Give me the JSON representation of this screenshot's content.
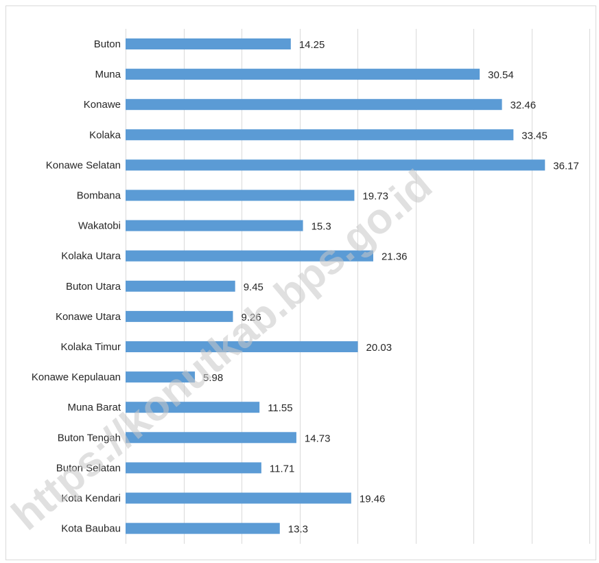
{
  "chart_data": {
    "type": "bar",
    "orientation": "horizontal",
    "title": "",
    "xlabel": "",
    "ylabel": "",
    "categories": [
      "Buton",
      "Muna",
      "Konawe",
      "Kolaka",
      "Konawe Selatan",
      "Bombana",
      "Wakatobi",
      "Kolaka Utara",
      "Buton Utara",
      "Konawe Utara",
      "Kolaka Timur",
      "Konawe Kepulauan",
      "Muna Barat",
      "Buton Tengah",
      "Buton Selatan",
      "Kota Kendari",
      "Kota Baubau"
    ],
    "values": [
      14.25,
      30.54,
      32.46,
      33.45,
      36.17,
      19.73,
      15.3,
      21.36,
      9.45,
      9.26,
      20.03,
      5.98,
      11.55,
      14.73,
      11.71,
      19.46,
      13.3
    ],
    "value_labels": [
      "14.25",
      "30.54",
      "32.46",
      "33.45",
      "36.17",
      "19.73",
      "15.3",
      "21.36",
      "9.45",
      "9.26",
      "20.03",
      "5.98",
      "11.55",
      "14.73",
      "11.71",
      "19.46",
      "13.3"
    ],
    "xlim": [
      0,
      40
    ],
    "grid": true,
    "legend": "none",
    "colors": {
      "bar": "#5b9bd5",
      "grid": "#d9d9d9",
      "text": "#262626"
    }
  },
  "watermark": {
    "text": "https://konutkab.bps.go.id"
  }
}
